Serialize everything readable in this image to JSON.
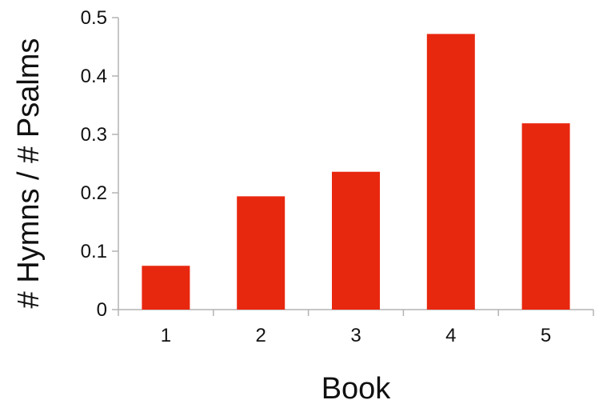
{
  "chart_data": {
    "type": "bar",
    "categories": [
      "1",
      "2",
      "3",
      "4",
      "5"
    ],
    "values": [
      0.075,
      0.194,
      0.236,
      0.472,
      0.319
    ],
    "xlabel": "Book",
    "ylabel": "# Hymns / # Psalms",
    "ylim": [
      0,
      0.5
    ],
    "yticks": [
      "0",
      "0.1",
      "0.2",
      "0.3",
      "0.4",
      "0.5"
    ],
    "bar_color": "#e8270f",
    "axis_color": "#b3b3b3",
    "grid": false,
    "legend": "none"
  }
}
